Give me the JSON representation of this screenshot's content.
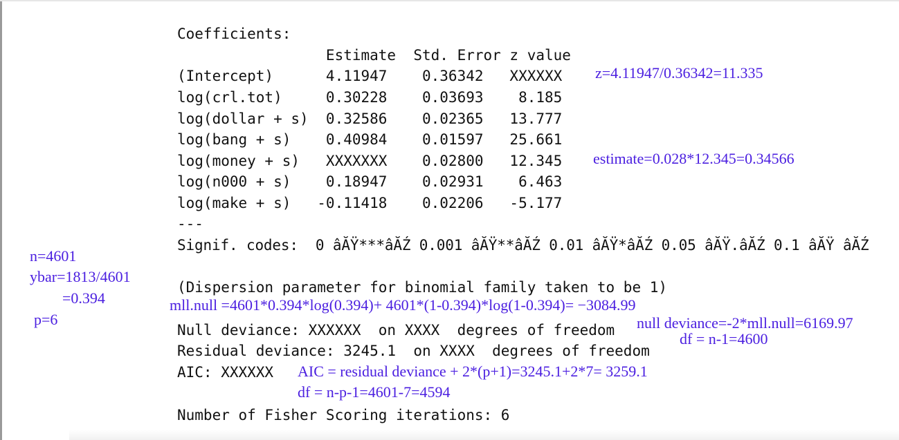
{
  "output": {
    "coef_header": "Coefficients:",
    "col_header": "                 Estimate  Std. Error z value",
    "rows": [
      "(Intercept)      4.11947    0.36342   XXXXXX",
      "log(crl.tot)     0.30228    0.03693    8.185",
      "log(dollar + s)  0.32586    0.02365   13.777",
      "log(bang + s)    0.40984    0.01597   25.661",
      "log(money + s)   XXXXXXX    0.02800   12.345",
      "log(n000 + s)    0.18947    0.02931    6.463",
      "log(make + s)   -0.11418    0.02206   -5.177"
    ],
    "separator": "---",
    "signif": "Signif. codes:  0 âĂŸ***âĂŹ 0.001 âĂŸ**âĂŹ 0.01 âĂŸ*âĂŹ 0.05 âĂŸ.âĂŹ 0.1 âĂŸ âĂŹ",
    "dispersion": "(Dispersion parameter for binomial family taken to be 1)",
    "null_dev": "Null deviance: XXXXXX  on XXXX  degrees of freedom",
    "resid_dev": "Residual deviance: 3245.1  on XXXX  degrees of freedom",
    "aic": "AIC: XXXXXX",
    "fisher": "Number of Fisher Scoring iterations: 6"
  },
  "annotations": {
    "z_calc": "z=4.11947/0.36342=11.335",
    "estimate_calc": "estimate=0.028*12.345=0.34566",
    "n": "n=4601",
    "ybar": "ybar=1813/4601",
    "ybar_val": "=0.394",
    "p": "p=6",
    "mll_null": "mll.null =4601*0.394*log(0.394)+ 4601*(1-0.394)*log(1-0.394)= −3084.99",
    "null_dev_calc": "null deviance=-2*mll.null=6169.97",
    "df_null": "df = n-1=4600",
    "aic_calc": "AIC = residual deviance + 2*(p+1)=3245.1+2*7= 3259.1",
    "df_resid": "df = n-p-1=4601-7=4594"
  }
}
